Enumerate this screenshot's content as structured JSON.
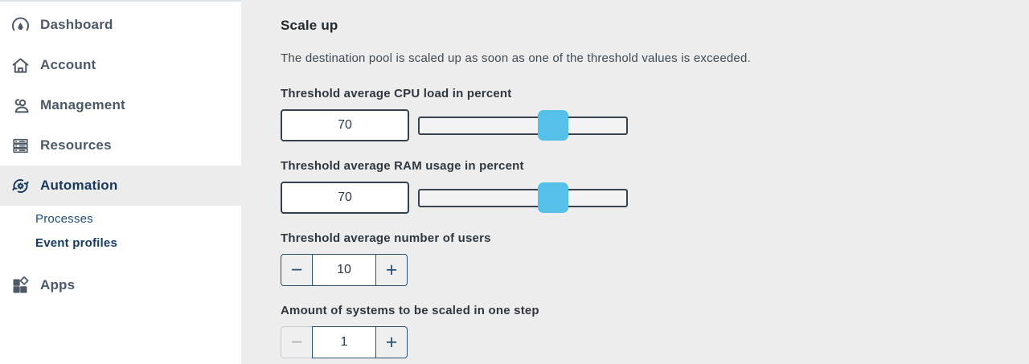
{
  "colors": {
    "accent_blue": "#55c1e8",
    "sidebar_bg": "#ffffff",
    "content_bg": "#ededed",
    "active_item_bg": "#ececec",
    "active_navy": "#17395d",
    "input_border": "#36414d"
  },
  "sidebar": {
    "items": [
      {
        "label": "Dashboard",
        "icon": "gauge-icon"
      },
      {
        "label": "Account",
        "icon": "home-icon"
      },
      {
        "label": "Management",
        "icon": "users-icon"
      },
      {
        "label": "Resources",
        "icon": "servers-icon"
      },
      {
        "label": "Automation",
        "icon": "automation-gear-icon",
        "children": [
          {
            "label": "Processes"
          },
          {
            "label": "Event profiles"
          }
        ]
      },
      {
        "label": "Apps",
        "icon": "apps-grid-icon"
      }
    ]
  },
  "main": {
    "title": "Scale up",
    "description": "The destination pool is scaled up as soon as one of the threshold values is exceeded.",
    "fields": [
      {
        "type": "slider",
        "label": "Threshold average CPU load in percent",
        "value": "70",
        "slider_percent": 64.6
      },
      {
        "type": "slider",
        "label": "Threshold average RAM usage in percent",
        "value": "70",
        "slider_percent": 64.6
      },
      {
        "type": "stepper",
        "label": "Threshold average number of users",
        "value": "10",
        "minus_disabled": false
      },
      {
        "type": "stepper",
        "label": "Amount of systems to be scaled in one step",
        "value": "1",
        "minus_disabled": true
      }
    ],
    "controls": {
      "minus": "−",
      "plus": "+"
    }
  }
}
